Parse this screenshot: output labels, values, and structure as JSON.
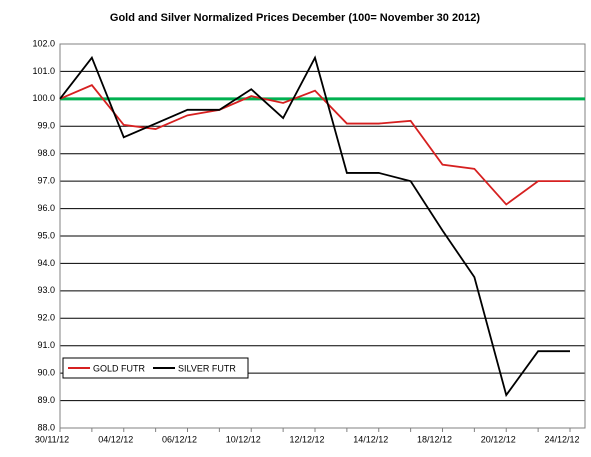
{
  "chart_data": {
    "type": "line",
    "title": "Gold and Silver Normalized Prices December (100= November 30 2012)",
    "categories": [
      "30/11/12",
      null,
      "04/12/12",
      null,
      "06/12/12",
      null,
      "10/12/12",
      null,
      "12/12/12",
      null,
      "14/12/12",
      null,
      "18/12/12",
      null,
      "20/12/12",
      null,
      "24/12/12"
    ],
    "series": [
      {
        "name": "GOLD  FUTR",
        "color": "#d62020",
        "values": [
          100,
          100.5,
          99.05,
          98.9,
          99.4,
          99.6,
          100.1,
          99.85,
          100.3,
          99.1,
          99.1,
          99.2,
          97.6,
          97.45,
          96.15,
          97.0,
          97.0
        ]
      },
      {
        "name": "SILVER  FUTR",
        "color": "#000000",
        "values": [
          100,
          101.5,
          98.6,
          99.1,
          99.6,
          99.6,
          100.35,
          99.3,
          101.5,
          97.3,
          97.3,
          97.0,
          95.2,
          93.5,
          89.2,
          90.8,
          90.8
        ]
      }
    ],
    "reference_line": {
      "value": 100,
      "color": "#00b050"
    },
    "ylim": [
      88,
      102
    ],
    "yticks": [
      {
        "value": 88,
        "label": "88.0"
      },
      {
        "value": 89,
        "label": "89.0"
      },
      {
        "value": 90,
        "label": "90.0"
      },
      {
        "value": 91,
        "label": "91.0"
      },
      {
        "value": 92,
        "label": "92.0"
      },
      {
        "value": 93,
        "label": "93.0"
      },
      {
        "value": 94,
        "label": "94.0"
      },
      {
        "value": 95,
        "label": "95.0"
      },
      {
        "value": 96,
        "label": "96.0"
      },
      {
        "value": 97,
        "label": "97.0"
      },
      {
        "value": 98,
        "label": "98.0"
      },
      {
        "value": 99,
        "label": "99.0"
      },
      {
        "value": 100,
        "label": "100.0"
      },
      {
        "value": 101,
        "label": "101.0"
      },
      {
        "value": 102,
        "label": "102.0"
      }
    ],
    "grid": true,
    "legend": "lower left"
  }
}
